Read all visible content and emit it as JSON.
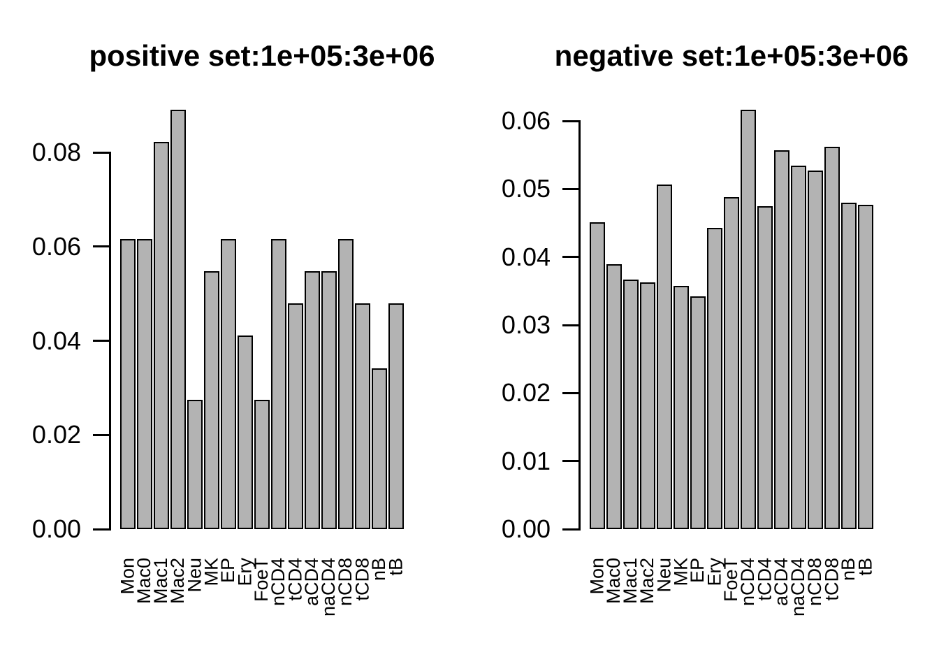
{
  "figure": {
    "background": "#ffffff",
    "bar_fill": "#b3b3b3",
    "bar_border": "#000000",
    "axis_color": "#000000"
  },
  "chart_data": [
    {
      "type": "bar",
      "title": "positive set:1e+05:3e+06",
      "categories": [
        "Mon",
        "Mac0",
        "Mac1",
        "Mac2",
        "Neu",
        "MK",
        "EP",
        "Ery",
        "FoeT",
        "nCD4",
        "tCD4",
        "aCD4",
        "naCD4",
        "nCD8",
        "tCD8",
        "nB",
        "tB"
      ],
      "values": [
        0.0616,
        0.0616,
        0.0822,
        0.089,
        0.0274,
        0.0548,
        0.0616,
        0.0411,
        0.0274,
        0.0616,
        0.0479,
        0.0548,
        0.0548,
        0.0616,
        0.0479,
        0.0342,
        0.0479
      ],
      "xlabel": "",
      "ylabel": "",
      "ylim": [
        0,
        0.089
      ],
      "yticks": [
        0,
        0.02,
        0.04,
        0.06,
        0.08
      ],
      "ytick_labels": [
        "0.00",
        "0.02",
        "0.04",
        "0.06",
        "0.08"
      ],
      "grid": false,
      "legend": "none",
      "xtick_rotation": 90
    },
    {
      "type": "bar",
      "title": "negative set:1e+05:3e+06",
      "categories": [
        "Mon",
        "Mac0",
        "Mac1",
        "Mac2",
        "Neu",
        "MK",
        "EP",
        "Ery",
        "FoeT",
        "nCD4",
        "tCD4",
        "aCD4",
        "naCD4",
        "nCD8",
        "tCD8",
        "nB",
        "tB"
      ],
      "values": [
        0.0451,
        0.0389,
        0.0367,
        0.0363,
        0.0507,
        0.0358,
        0.0342,
        0.0443,
        0.0488,
        0.0616,
        0.0475,
        0.0557,
        0.0534,
        0.0527,
        0.0562,
        0.048,
        0.0477
      ],
      "xlabel": "",
      "ylabel": "",
      "ylim": [
        0,
        0.0616
      ],
      "yticks": [
        0,
        0.01,
        0.02,
        0.03,
        0.04,
        0.05,
        0.06
      ],
      "ytick_labels": [
        "0.00",
        "0.01",
        "0.02",
        "0.03",
        "0.04",
        "0.05",
        "0.06"
      ],
      "grid": false,
      "legend": "none",
      "xtick_rotation": 90
    }
  ]
}
